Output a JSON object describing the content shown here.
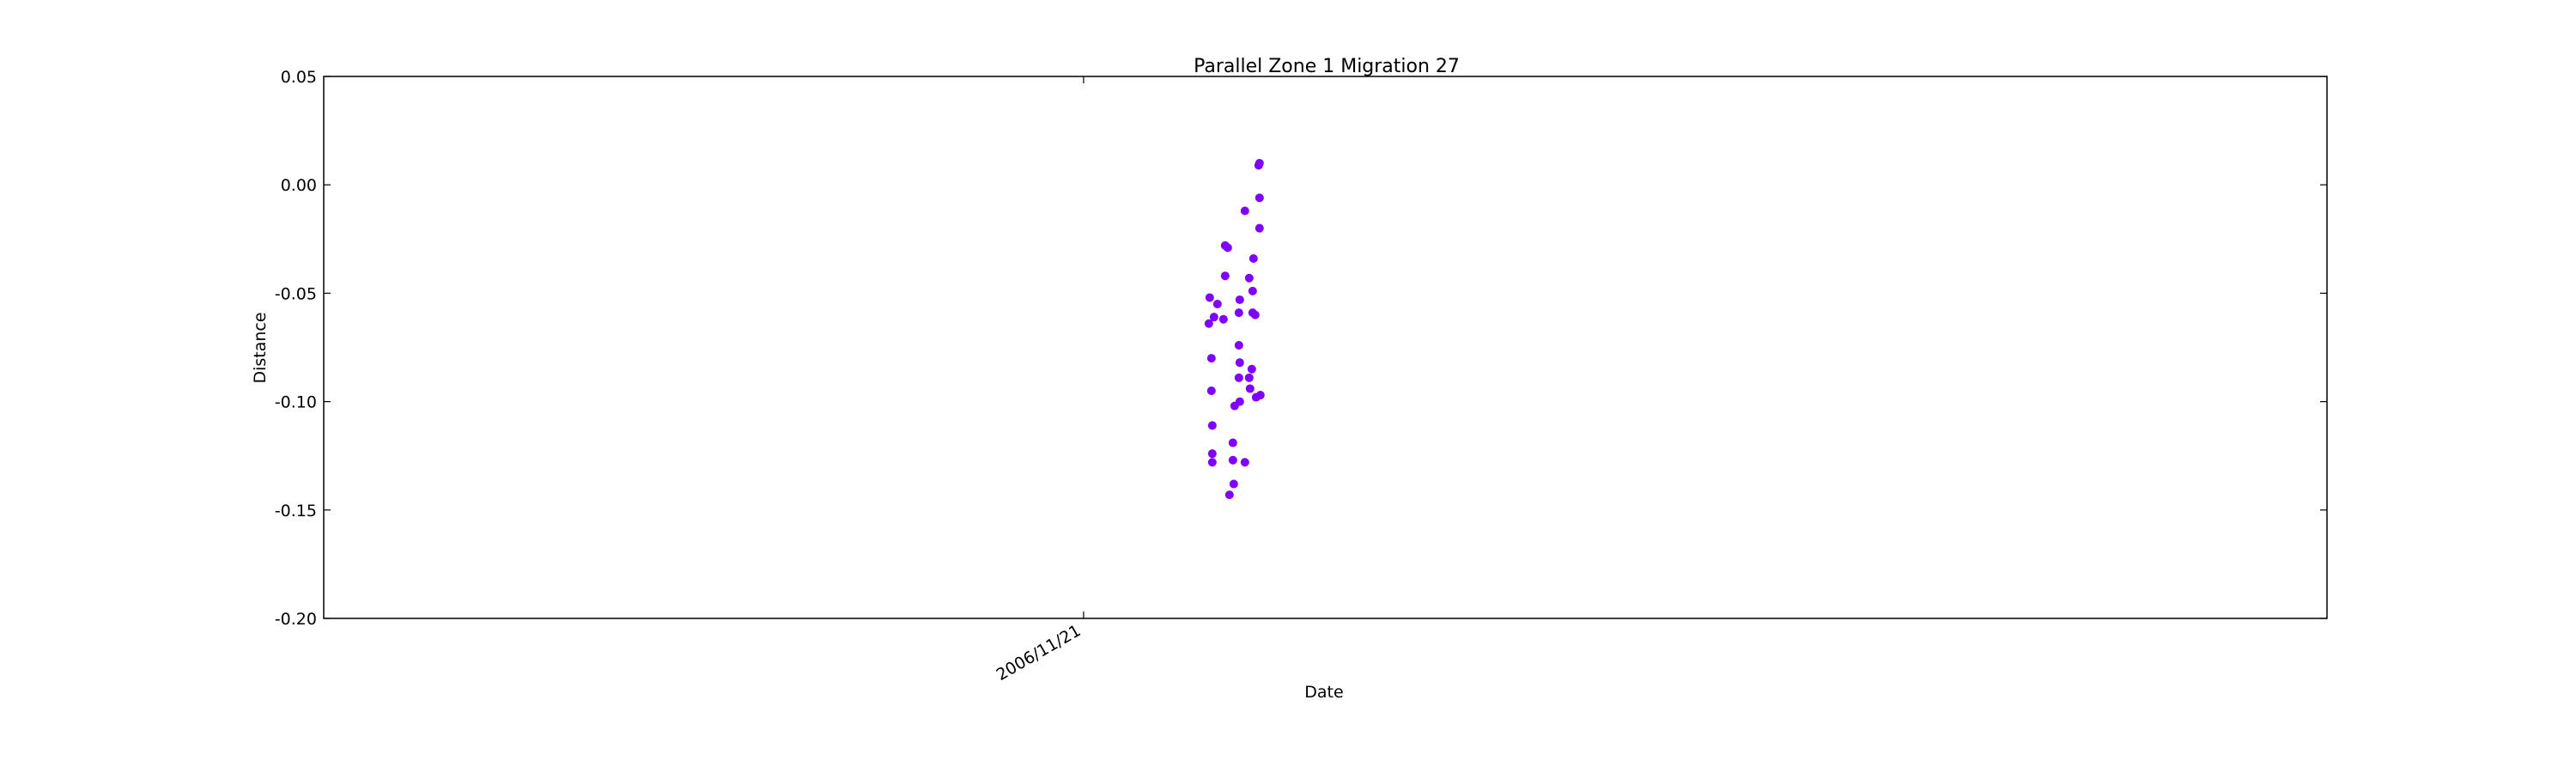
{
  "chart_data": {
    "type": "scatter",
    "title": "Parallel Zone 1 Migration 27",
    "xlabel": "Date",
    "ylabel": "Distance",
    "ylim": [
      -0.2,
      0.05
    ],
    "yticks": [
      "-0.20",
      "-0.15",
      "-0.10",
      "-0.05",
      "0.00",
      "0.05"
    ],
    "xticks": [
      {
        "label": "2006/11/21",
        "date": "2006-11-21"
      }
    ],
    "xlim": [
      "2006-11-10",
      "2006-12-09"
    ],
    "grid": false,
    "legend": "none",
    "marker_color": "#7f00ff",
    "points": [
      {
        "date": "2006-11-23",
        "y": -0.064
      },
      {
        "date": "2006-11-23",
        "y": -0.052
      },
      {
        "date": "2006-11-23",
        "y": -0.08
      },
      {
        "date": "2006-11-23",
        "y": -0.095
      },
      {
        "date": "2006-11-23",
        "y": -0.111
      },
      {
        "date": "2006-11-23",
        "y": -0.124
      },
      {
        "date": "2006-11-23",
        "y": -0.128
      },
      {
        "date": "2006-11-23",
        "y": -0.061
      },
      {
        "date": "2006-11-23",
        "y": -0.055
      },
      {
        "date": "2006-11-23",
        "y": -0.062
      },
      {
        "date": "2006-11-23",
        "y": -0.042
      },
      {
        "date": "2006-11-23",
        "y": -0.028
      },
      {
        "date": "2006-11-23",
        "y": -0.029
      },
      {
        "date": "2006-11-23",
        "y": -0.143
      },
      {
        "date": "2006-11-23",
        "y": -0.119
      },
      {
        "date": "2006-11-23",
        "y": -0.127
      },
      {
        "date": "2006-11-23",
        "y": -0.138
      },
      {
        "date": "2006-11-23",
        "y": -0.102
      },
      {
        "date": "2006-11-23",
        "y": -0.1
      },
      {
        "date": "2006-11-23",
        "y": -0.089
      },
      {
        "date": "2006-11-23",
        "y": -0.082
      },
      {
        "date": "2006-11-23",
        "y": -0.074
      },
      {
        "date": "2006-11-23",
        "y": -0.059
      },
      {
        "date": "2006-11-23",
        "y": -0.053
      },
      {
        "date": "2006-11-23",
        "y": -0.012
      },
      {
        "date": "2006-11-23",
        "y": -0.128
      },
      {
        "date": "2006-11-23",
        "y": -0.089
      },
      {
        "date": "2006-11-23",
        "y": -0.094
      },
      {
        "date": "2006-11-23",
        "y": -0.085
      },
      {
        "date": "2006-11-23",
        "y": -0.043
      },
      {
        "date": "2006-11-23",
        "y": -0.049
      },
      {
        "date": "2006-11-23",
        "y": -0.034
      },
      {
        "date": "2006-11-23",
        "y": -0.059
      },
      {
        "date": "2006-11-23",
        "y": -0.06
      },
      {
        "date": "2006-11-23",
        "y": -0.098
      },
      {
        "date": "2006-11-23",
        "y": -0.097
      },
      {
        "date": "2006-11-23",
        "y": -0.02
      },
      {
        "date": "2006-11-23",
        "y": -0.006
      },
      {
        "date": "2006-11-23",
        "y": 0.009
      },
      {
        "date": "2006-11-23",
        "y": 0.01
      }
    ]
  }
}
